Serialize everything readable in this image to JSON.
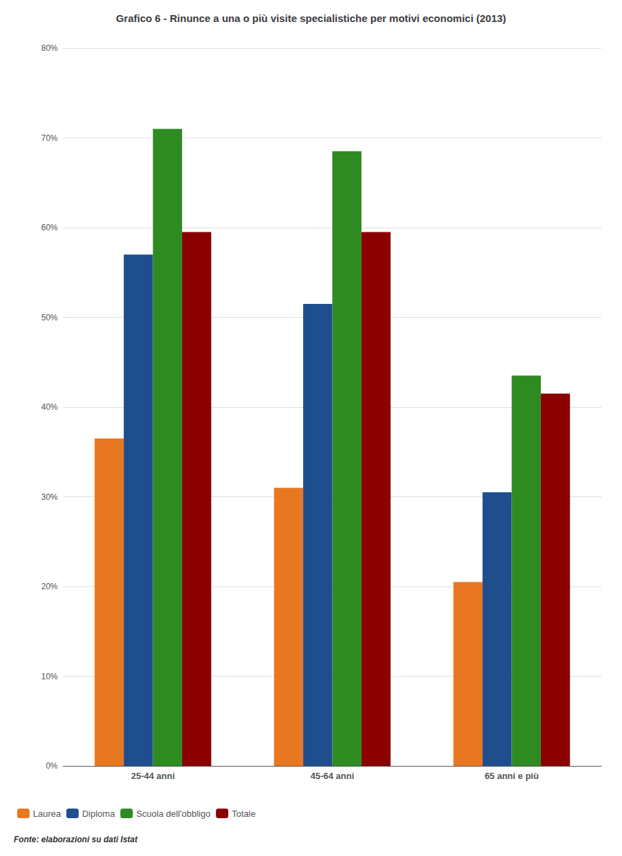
{
  "chart_data": {
    "type": "bar",
    "title": "Grafico 6 - Rinunce a una o più visite specialistiche per motivi economici (2013)",
    "categories": [
      "25-44 anni",
      "45-64 anni",
      "65 anni e più"
    ],
    "series": [
      {
        "name": "Laurea",
        "color": "#E87722",
        "values": [
          36.5,
          31.0,
          20.5
        ]
      },
      {
        "name": "Diploma",
        "color": "#1F4E8C",
        "values": [
          57.0,
          51.5,
          30.5
        ]
      },
      {
        "name": "Scuola dell'obbligo",
        "color": "#2E8B22",
        "values": [
          71.0,
          68.5,
          43.5
        ]
      },
      {
        "name": "Totale",
        "color": "#8B0000",
        "values": [
          59.5,
          59.5,
          41.5
        ]
      }
    ],
    "ylim": [
      0,
      80
    ],
    "yticks": [
      {
        "value": 0,
        "label": "0%"
      },
      {
        "value": 10,
        "label": "10%"
      },
      {
        "value": 20,
        "label": "20%"
      },
      {
        "value": 30,
        "label": "30%"
      },
      {
        "value": 40,
        "label": "40%"
      },
      {
        "value": 50,
        "label": "50%"
      },
      {
        "value": 60,
        "label": "60%"
      },
      {
        "value": 70,
        "label": "70%"
      },
      {
        "value": 80,
        "label": "80%"
      }
    ],
    "grid": true,
    "legend": "lower left",
    "annotations": [
      "Fonte: elaborazioni su dati Istat"
    ]
  }
}
